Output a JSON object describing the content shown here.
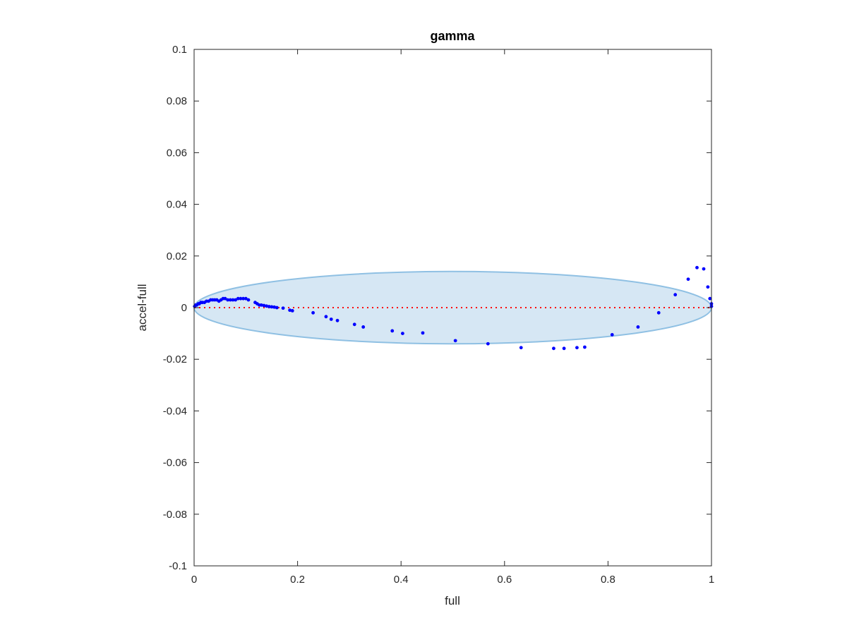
{
  "chart_data": {
    "type": "scatter",
    "title": "gamma",
    "xlabel": "full",
    "ylabel": "accel-full",
    "xlim": [
      0,
      1
    ],
    "ylim": [
      -0.1,
      0.1
    ],
    "xticks": [
      0,
      0.2,
      0.4,
      0.6,
      0.8,
      1
    ],
    "xtick_labels": [
      "0",
      "0.2",
      "0.4",
      "0.6",
      "0.8",
      "1"
    ],
    "yticks": [
      0.1,
      0.08,
      0.06,
      0.04,
      0.02,
      0,
      -0.02,
      -0.04,
      -0.06,
      -0.08,
      -0.1
    ],
    "ytick_labels": [
      "0.1",
      "0.08",
      "0.06",
      "0.04",
      "0.02",
      "0",
      "-0.02",
      "-0.04",
      "-0.06",
      "-0.08",
      "-0.1"
    ],
    "grid": false,
    "colors": {
      "points": "#0000ff",
      "reference_line": "#ff0000",
      "ellipse_fill": "#d6e7f4",
      "ellipse_stroke": "#8fc0e3",
      "axes": "#262626"
    },
    "reference_line": {
      "y": 0,
      "style": "dotted"
    },
    "ellipse": {
      "center_x": 0.5,
      "center_y": 0,
      "x_radius": 0.5,
      "y_radius": 0.014
    },
    "series": [
      {
        "marker": "dot",
        "x": [
          0.001,
          0.003,
          0.005,
          0.008,
          0.01,
          0.013,
          0.016,
          0.02,
          0.024,
          0.028,
          0.032,
          0.036,
          0.04,
          0.044,
          0.048,
          0.052,
          0.056,
          0.06,
          0.065,
          0.07,
          0.075,
          0.08,
          0.085,
          0.09,
          0.095,
          0.1,
          0.105,
          0.118,
          0.122,
          0.126,
          0.13,
          0.135,
          0.14,
          0.145,
          0.15,
          0.155,
          0.16,
          0.172,
          0.185,
          0.19,
          0.23,
          0.255,
          0.265,
          0.277,
          0.31,
          0.327,
          0.383,
          0.403,
          0.442,
          0.505,
          0.568,
          0.632,
          0.695,
          0.715,
          0.74,
          0.755,
          0.808,
          0.858,
          0.898,
          0.93,
          0.955,
          0.972,
          0.985,
          0.993,
          0.997,
          1.0,
          1.0
        ],
        "y": [
          0.0005,
          0.001,
          0.001,
          0.0015,
          0.0015,
          0.002,
          0.002,
          0.002,
          0.0025,
          0.0025,
          0.003,
          0.003,
          0.003,
          0.003,
          0.0025,
          0.003,
          0.0035,
          0.0035,
          0.003,
          0.003,
          0.003,
          0.003,
          0.0035,
          0.0035,
          0.0035,
          0.0035,
          0.003,
          0.002,
          0.0015,
          0.001,
          0.001,
          0.0008,
          0.0006,
          0.0004,
          0.0003,
          0.0002,
          0.0,
          -0.0002,
          -0.001,
          -0.0012,
          -0.002,
          -0.0035,
          -0.0045,
          -0.005,
          -0.0065,
          -0.0075,
          -0.009,
          -0.01,
          -0.0098,
          -0.0128,
          -0.014,
          -0.0155,
          -0.0158,
          -0.0158,
          -0.0155,
          -0.0153,
          -0.0105,
          -0.0075,
          -0.002,
          0.005,
          0.011,
          0.0155,
          0.015,
          0.008,
          0.0035,
          0.0015,
          0.0005
        ]
      }
    ]
  }
}
